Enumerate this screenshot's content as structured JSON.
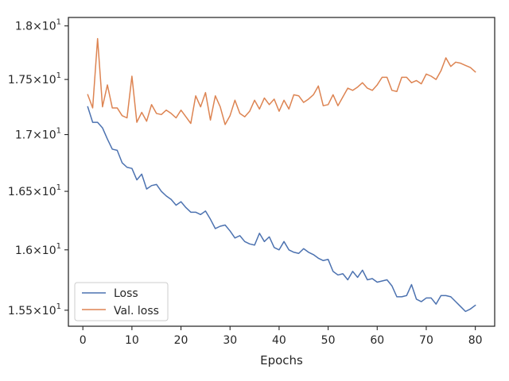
{
  "chart_data": {
    "type": "line",
    "title": "",
    "xlabel": "Epochs",
    "ylabel": "",
    "yscale": "log",
    "xlim": [
      -2.95,
      83.95
    ],
    "ylim": [
      15.37,
      18.08
    ],
    "xticks": [
      0,
      10,
      20,
      30,
      40,
      50,
      60,
      70,
      80
    ],
    "xtick_labels": [
      "0",
      "10",
      "20",
      "30",
      "40",
      "50",
      "60",
      "70",
      "80"
    ],
    "yticks": [
      15.5,
      16.0,
      16.5,
      17.0,
      17.5,
      18.0
    ],
    "ytick_labels": [
      {
        "base": "1.55",
        "exp": "1"
      },
      {
        "base": "1.6",
        "exp": "1"
      },
      {
        "base": "1.65",
        "exp": "1"
      },
      {
        "base": "1.7",
        "exp": "1"
      },
      {
        "base": "1.75",
        "exp": "1"
      },
      {
        "base": "1.8",
        "exp": "1"
      }
    ],
    "grid": false,
    "legend": "lower-left",
    "x": [
      1,
      2,
      3,
      4,
      5,
      6,
      7,
      8,
      9,
      10,
      11,
      12,
      13,
      14,
      15,
      16,
      17,
      18,
      19,
      20,
      21,
      22,
      23,
      24,
      25,
      26,
      27,
      28,
      29,
      30,
      31,
      32,
      33,
      34,
      35,
      36,
      37,
      38,
      39,
      40,
      41,
      42,
      43,
      44,
      45,
      46,
      47,
      48,
      49,
      50,
      51,
      52,
      53,
      54,
      55,
      56,
      57,
      58,
      59,
      60,
      61,
      62,
      63,
      64,
      65,
      66,
      67,
      68,
      69,
      70,
      71,
      72,
      73,
      74,
      75,
      76,
      77,
      78,
      79,
      80
    ],
    "series": [
      {
        "name": "Loss",
        "color": "#4c72b0",
        "values": [
          17.25,
          17.11,
          17.11,
          17.06,
          16.96,
          16.87,
          16.86,
          16.75,
          16.71,
          16.7,
          16.6,
          16.65,
          16.52,
          16.55,
          16.56,
          16.5,
          16.46,
          16.43,
          16.38,
          16.41,
          16.36,
          16.32,
          16.32,
          16.3,
          16.33,
          16.26,
          16.18,
          16.2,
          16.21,
          16.16,
          16.1,
          16.12,
          16.07,
          16.05,
          16.04,
          16.14,
          16.07,
          16.11,
          16.02,
          16.0,
          16.07,
          16.0,
          15.98,
          15.97,
          16.01,
          15.98,
          15.96,
          15.93,
          15.91,
          15.92,
          15.82,
          15.79,
          15.8,
          15.75,
          15.82,
          15.77,
          15.83,
          15.75,
          15.76,
          15.73,
          15.74,
          15.75,
          15.7,
          15.61,
          15.61,
          15.62,
          15.71,
          15.59,
          15.57,
          15.6,
          15.6,
          15.55,
          15.62,
          15.62,
          15.61,
          15.57,
          15.53,
          15.49,
          15.51,
          15.54
        ]
      },
      {
        "name": "Val. loss",
        "color": "#dd8452",
        "values": [
          17.36,
          17.24,
          17.88,
          17.25,
          17.45,
          17.24,
          17.24,
          17.17,
          17.15,
          17.53,
          17.11,
          17.2,
          17.12,
          17.27,
          17.19,
          17.18,
          17.22,
          17.19,
          17.15,
          17.22,
          17.16,
          17.1,
          17.35,
          17.25,
          17.38,
          17.13,
          17.35,
          17.25,
          17.09,
          17.17,
          17.31,
          17.19,
          17.16,
          17.21,
          17.31,
          17.23,
          17.33,
          17.27,
          17.32,
          17.21,
          17.31,
          17.23,
          17.36,
          17.35,
          17.29,
          17.32,
          17.36,
          17.44,
          17.26,
          17.27,
          17.36,
          17.26,
          17.34,
          17.42,
          17.4,
          17.43,
          17.47,
          17.42,
          17.4,
          17.45,
          17.52,
          17.52,
          17.4,
          17.39,
          17.52,
          17.52,
          17.47,
          17.49,
          17.46,
          17.55,
          17.53,
          17.5,
          17.58,
          17.7,
          17.62,
          17.66,
          17.65,
          17.63,
          17.61,
          17.57
        ]
      }
    ]
  }
}
